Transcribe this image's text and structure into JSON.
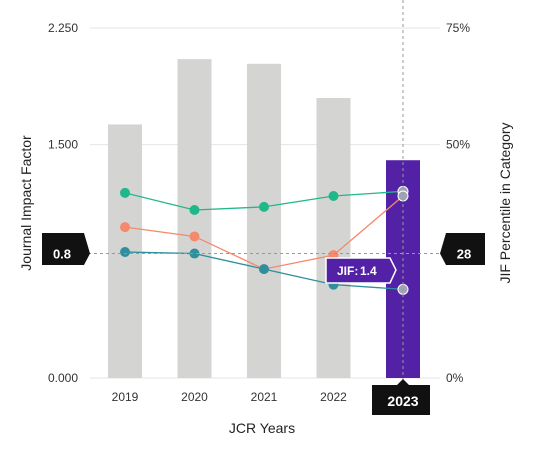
{
  "chart_data": {
    "type": "bar",
    "categories": [
      "2019",
      "2020",
      "2021",
      "2022",
      "2023"
    ],
    "bars": {
      "values": [
        1.63,
        2.05,
        2.02,
        1.8,
        1.4
      ],
      "highlight_index": 4,
      "color": "#d4d5d3",
      "highlight_color": "#5321a6"
    },
    "lines": [
      {
        "color": "#20b78a",
        "values": [
          1.19,
          1.08,
          1.1,
          1.17,
          1.2
        ]
      },
      {
        "color": "#f4896b",
        "values": [
          0.97,
          0.91,
          0.7,
          0.79,
          1.17
        ]
      },
      {
        "color": "#2f8f9d",
        "values": [
          0.81,
          0.8,
          0.7,
          0.6,
          0.57
        ]
      }
    ],
    "ylabel": "Journal Impact Factor",
    "y2label": "JIF Percentile in Category",
    "xlabel": "JCR Years",
    "ylim": [
      0,
      2.25
    ],
    "y2lim": [
      0,
      75
    ],
    "yticks": [
      "0.000",
      "1.500",
      "2.250"
    ],
    "y2ticks": [
      "0%",
      "50%",
      "75%"
    ],
    "grid": true,
    "crosshair": {
      "y_value": 0.8,
      "left_label": "0.8",
      "right_label": "28",
      "x_label": "2023"
    },
    "tooltip": {
      "label": "JIF:",
      "value": "1.4"
    }
  }
}
